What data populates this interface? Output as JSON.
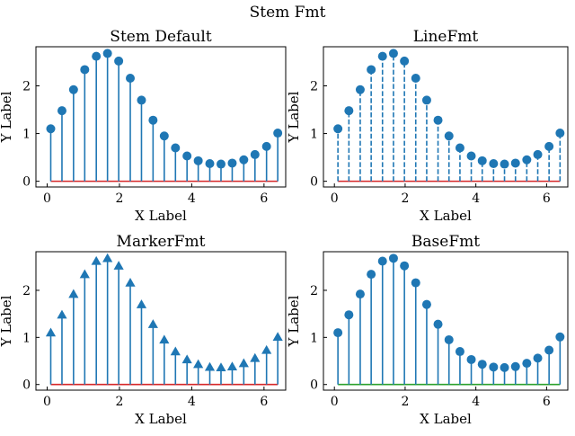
{
  "figure": {
    "suptitle": "Stem Fmt"
  },
  "colors": {
    "stem": "#1f77b4",
    "base_default": "#d62728",
    "base_green": "#2ca02c"
  },
  "chart_data": [
    {
      "type": "stem",
      "title": "Stem Default",
      "xlabel": "X Label",
      "ylabel": "Y Label",
      "xlim": [
        -0.31,
        6.6
      ],
      "ylim": [
        -0.12,
        2.82
      ],
      "xticks": [
        0,
        2,
        4,
        6
      ],
      "yticks": [
        0,
        1,
        2
      ],
      "line_style": "solid",
      "marker": "circle",
      "base_color": "#d62728",
      "x": [
        0.1,
        0.41,
        0.73,
        1.04,
        1.36,
        1.67,
        1.98,
        2.3,
        2.61,
        2.93,
        3.24,
        3.55,
        3.87,
        4.18,
        4.5,
        4.81,
        5.12,
        5.44,
        5.75,
        6.07,
        6.38
      ],
      "y": [
        1.1,
        1.48,
        1.92,
        2.34,
        2.62,
        2.68,
        2.52,
        2.16,
        1.7,
        1.28,
        0.95,
        0.7,
        0.53,
        0.43,
        0.37,
        0.36,
        0.38,
        0.45,
        0.56,
        0.73,
        1.01
      ]
    },
    {
      "type": "stem",
      "title": "LineFmt",
      "xlabel": "X Label",
      "ylabel": "Y Label",
      "xlim": [
        -0.31,
        6.6
      ],
      "ylim": [
        -0.12,
        2.82
      ],
      "xticks": [
        0,
        2,
        4,
        6
      ],
      "yticks": [
        0,
        1,
        2
      ],
      "line_style": "dashed",
      "marker": "circle",
      "base_color": "#d62728",
      "x": [
        0.1,
        0.41,
        0.73,
        1.04,
        1.36,
        1.67,
        1.98,
        2.3,
        2.61,
        2.93,
        3.24,
        3.55,
        3.87,
        4.18,
        4.5,
        4.81,
        5.12,
        5.44,
        5.75,
        6.07,
        6.38
      ],
      "y": [
        1.1,
        1.48,
        1.92,
        2.34,
        2.62,
        2.68,
        2.52,
        2.16,
        1.7,
        1.28,
        0.95,
        0.7,
        0.53,
        0.43,
        0.37,
        0.36,
        0.38,
        0.45,
        0.56,
        0.73,
        1.01
      ]
    },
    {
      "type": "stem",
      "title": "MarkerFmt",
      "xlabel": "X Label",
      "ylabel": "Y Label",
      "xlim": [
        -0.31,
        6.6
      ],
      "ylim": [
        -0.12,
        2.82
      ],
      "xticks": [
        0,
        2,
        4,
        6
      ],
      "yticks": [
        0,
        1,
        2
      ],
      "line_style": "solid",
      "marker": "triangle",
      "base_color": "#d62728",
      "x": [
        0.1,
        0.41,
        0.73,
        1.04,
        1.36,
        1.67,
        1.98,
        2.3,
        2.61,
        2.93,
        3.24,
        3.55,
        3.87,
        4.18,
        4.5,
        4.81,
        5.12,
        5.44,
        5.75,
        6.07,
        6.38
      ],
      "y": [
        1.1,
        1.48,
        1.92,
        2.34,
        2.62,
        2.68,
        2.52,
        2.16,
        1.7,
        1.28,
        0.95,
        0.7,
        0.53,
        0.43,
        0.37,
        0.36,
        0.38,
        0.45,
        0.56,
        0.73,
        1.01
      ]
    },
    {
      "type": "stem",
      "title": "BaseFmt",
      "xlabel": "X Label",
      "ylabel": "Y Label",
      "xlim": [
        -0.31,
        6.6
      ],
      "ylim": [
        -0.12,
        2.82
      ],
      "xticks": [
        0,
        2,
        4,
        6
      ],
      "yticks": [
        0,
        1,
        2
      ],
      "line_style": "solid",
      "marker": "circle",
      "base_color": "#2ca02c",
      "x": [
        0.1,
        0.41,
        0.73,
        1.04,
        1.36,
        1.67,
        1.98,
        2.3,
        2.61,
        2.93,
        3.24,
        3.55,
        3.87,
        4.18,
        4.5,
        4.81,
        5.12,
        5.44,
        5.75,
        6.07,
        6.38
      ],
      "y": [
        1.1,
        1.48,
        1.92,
        2.34,
        2.62,
        2.68,
        2.52,
        2.16,
        1.7,
        1.28,
        0.95,
        0.7,
        0.53,
        0.43,
        0.37,
        0.36,
        0.38,
        0.45,
        0.56,
        0.73,
        1.01
      ]
    }
  ]
}
